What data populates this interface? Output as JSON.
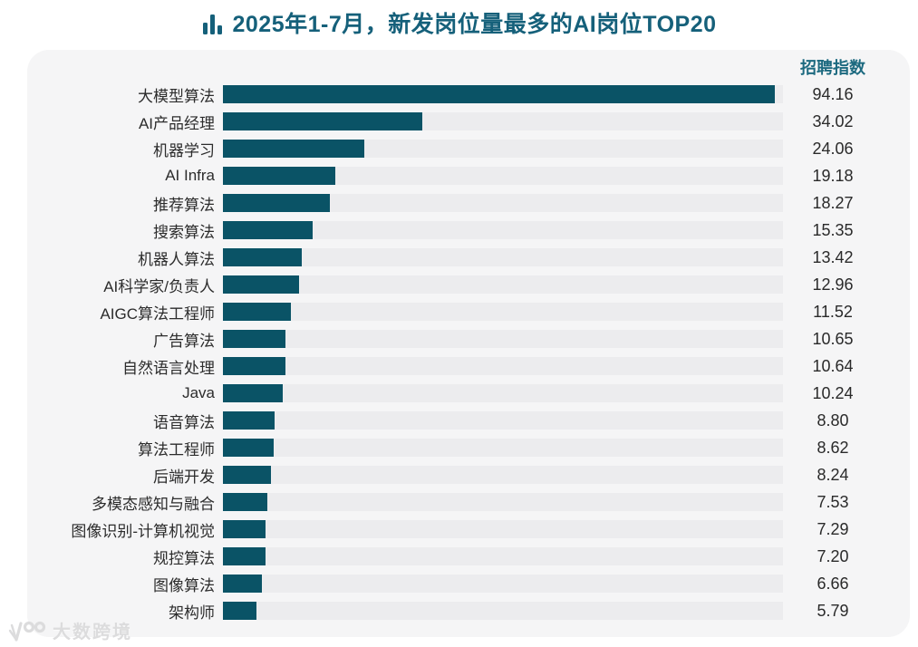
{
  "title": {
    "text": "2025年1-7月，新发岗位量最多的AI岗位TOP20",
    "icon": "bar-chart-icon"
  },
  "panel": {
    "value_header": "招聘指数"
  },
  "watermark": {
    "logo": "100",
    "text": "大数跨境"
  },
  "colors": {
    "bar": "#0a5366",
    "title": "#15607a",
    "value_header": "#1d6a80",
    "track": "#ececee",
    "card_bg": "#f5f5f6"
  },
  "chart_data": {
    "type": "bar",
    "orientation": "horizontal",
    "title": "2025年1-7月，新发岗位量最多的AI岗位TOP20",
    "value_label": "招聘指数",
    "legend": false,
    "grid": false,
    "xlim": [
      0,
      95.5
    ],
    "categories": [
      "大模型算法",
      "AI产品经理",
      "机器学习",
      "AI Infra",
      "推荐算法",
      "搜索算法",
      "机器人算法",
      "AI科学家/负责人",
      "AIGC算法工程师",
      "广告算法",
      "自然语言处理",
      "Java",
      "语音算法",
      "算法工程师",
      "后端开发",
      "多模态感知与融合",
      "图像识别-计算机视觉",
      "规控算法",
      "图像算法",
      "架构师"
    ],
    "values": [
      94.16,
      34.02,
      24.06,
      19.18,
      18.27,
      15.35,
      13.42,
      12.96,
      11.52,
      10.65,
      10.64,
      10.24,
      8.8,
      8.62,
      8.24,
      7.53,
      7.29,
      7.2,
      6.66,
      5.79
    ]
  }
}
